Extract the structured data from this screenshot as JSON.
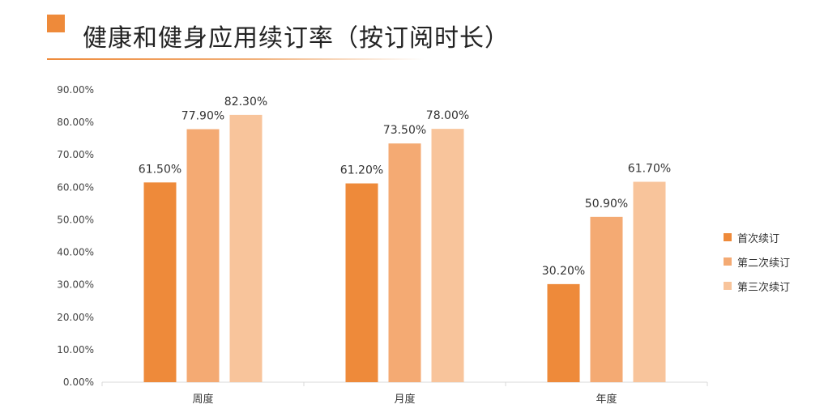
{
  "header": {
    "title": "健康和健身应用续订率（按订阅时长）"
  },
  "colors": {
    "accent": "#EE8A3A",
    "series": [
      "#EE8A3A",
      "#F4AA73",
      "#F8C49B"
    ]
  },
  "chart_data": {
    "type": "bar",
    "title": "健康和健身应用续订率（按订阅时长）",
    "categories": [
      "周度",
      "月度",
      "年度"
    ],
    "series": [
      {
        "name": "首次续订",
        "values": [
          61.5,
          61.2,
          30.2
        ]
      },
      {
        "name": "第二次续订",
        "values": [
          77.9,
          73.5,
          50.9
        ]
      },
      {
        "name": "第三次续订",
        "values": [
          82.3,
          78.0,
          61.7
        ]
      }
    ],
    "data_labels": [
      [
        "61.50%",
        "61.20%",
        "30.20%"
      ],
      [
        "77.90%",
        "73.50%",
        "50.90%"
      ],
      [
        "82.30%",
        "78.00%",
        "61.70%"
      ]
    ],
    "y_ticks": [
      "0.00%",
      "10.00%",
      "20.00%",
      "30.00%",
      "40.00%",
      "50.00%",
      "60.00%",
      "70.00%",
      "80.00%",
      "90.00%"
    ],
    "ylim": [
      0,
      90
    ],
    "grid": false,
    "legend_position": "right"
  }
}
